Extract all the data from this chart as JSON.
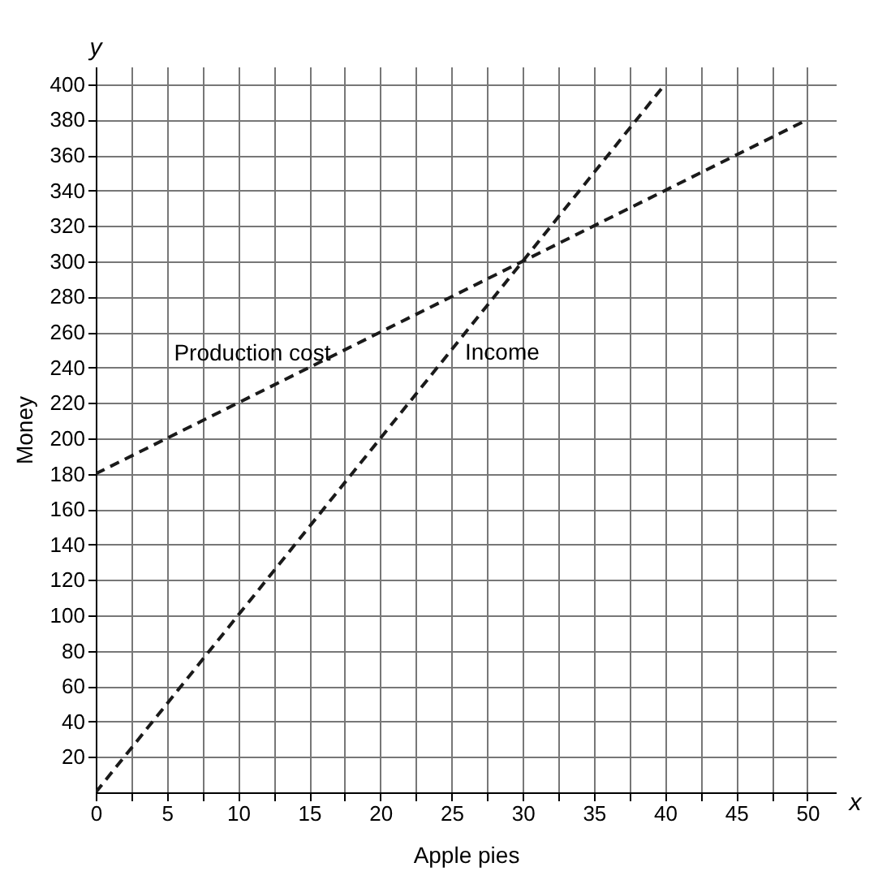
{
  "chart_data": {
    "type": "line",
    "xlabel": "Apple pies",
    "ylabel": "Money",
    "annotations": [
      "x",
      "y"
    ],
    "series": [
      {
        "name": "Production cost",
        "color": "#1a1a1a",
        "x": [
          0,
          50
        ],
        "values": [
          180,
          380
        ]
      },
      {
        "name": "Income",
        "color": "#1a1a1a",
        "x": [
          0,
          40
        ],
        "values": [
          0,
          400
        ]
      }
    ],
    "xlim": [
      0,
      52
    ],
    "ylim": [
      0,
      410
    ],
    "xticks": [
      0,
      {
        "value": 2.5,
        "label": null
      },
      5,
      {
        "value": 7.5,
        "label": null
      },
      10,
      {
        "value": 12.5,
        "label": null
      },
      15,
      {
        "value": 17.5,
        "label": null
      },
      20,
      {
        "value": 22.5,
        "label": null
      },
      25,
      {
        "value": 27.5,
        "label": null
      },
      30,
      {
        "value": 32.5,
        "label": null
      },
      35,
      {
        "value": 37.5,
        "label": null
      },
      40,
      {
        "value": 42.5,
        "label": null
      },
      45,
      {
        "value": 47.5,
        "label": null
      },
      50
    ],
    "yticks": [
      20,
      40,
      60,
      80,
      100,
      120,
      140,
      160,
      180,
      200,
      220,
      240,
      260,
      280,
      300,
      320,
      340,
      360,
      380,
      400
    ],
    "grid": true,
    "legend": false,
    "line_style": "dashed"
  }
}
